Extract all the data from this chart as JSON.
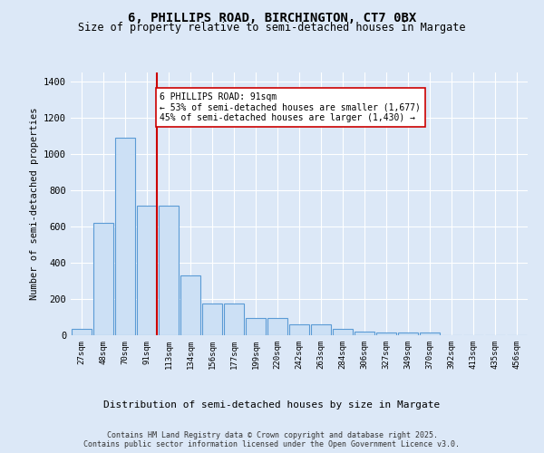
{
  "title_line1": "6, PHILLIPS ROAD, BIRCHINGTON, CT7 0BX",
  "title_line2": "Size of property relative to semi-detached houses in Margate",
  "xlabel": "Distribution of semi-detached houses by size in Margate",
  "ylabel": "Number of semi-detached properties",
  "bar_labels": [
    "27sqm",
    "48sqm",
    "70sqm",
    "91sqm",
    "113sqm",
    "134sqm",
    "156sqm",
    "177sqm",
    "199sqm",
    "220sqm",
    "242sqm",
    "263sqm",
    "284sqm",
    "306sqm",
    "327sqm",
    "349sqm",
    "370sqm",
    "392sqm",
    "413sqm",
    "435sqm",
    "456sqm"
  ],
  "bar_values": [
    35,
    620,
    1090,
    715,
    715,
    330,
    175,
    175,
    95,
    95,
    60,
    60,
    35,
    20,
    15,
    15,
    15,
    0,
    0,
    0,
    0
  ],
  "bar_color": "#cce0f5",
  "bar_edge_color": "#5b9bd5",
  "highlight_bar_index": 3,
  "red_line_color": "#cc0000",
  "annotation_text": "6 PHILLIPS ROAD: 91sqm\n← 53% of semi-detached houses are smaller (1,677)\n45% of semi-detached houses are larger (1,430) →",
  "annotation_box_color": "#ffffff",
  "annotation_box_edge": "#cc0000",
  "ylim": [
    0,
    1450
  ],
  "yticks": [
    0,
    200,
    400,
    600,
    800,
    1000,
    1200,
    1400
  ],
  "footer_text": "Contains HM Land Registry data © Crown copyright and database right 2025.\nContains public sector information licensed under the Open Government Licence v3.0.",
  "background_color": "#dce8f7",
  "fig_background_color": "#dce8f7",
  "grid_color": "#ffffff"
}
